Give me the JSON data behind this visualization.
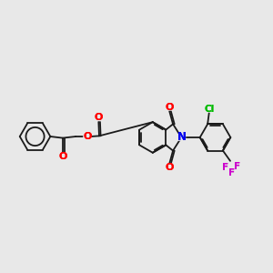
{
  "bg_color": "#e8e8e8",
  "bond_color": "#1a1a1a",
  "atom_colors": {
    "O": "#ff0000",
    "N": "#0000ee",
    "Cl": "#00bb00",
    "F": "#cc00cc"
  },
  "bond_width": 1.3,
  "fig_width": 3.0,
  "fig_height": 3.0,
  "dpi": 100
}
